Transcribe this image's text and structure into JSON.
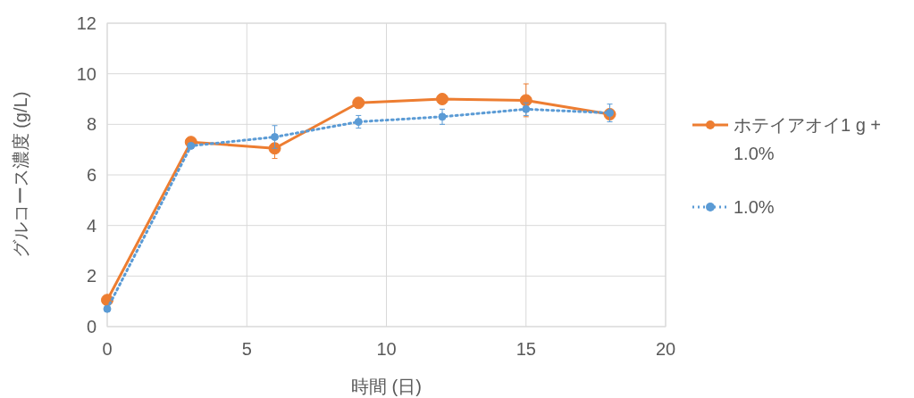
{
  "chart_data": {
    "type": "line",
    "xlabel": "時間 (日)",
    "ylabel": "グルコース濃度 (g/L)",
    "x": [
      0,
      3,
      6,
      9,
      12,
      15,
      18
    ],
    "xlim": [
      0,
      20
    ],
    "xticks": [
      0,
      5,
      10,
      15,
      20
    ],
    "ylim": [
      0,
      12
    ],
    "yticks": [
      0,
      2,
      4,
      6,
      8,
      10,
      12
    ],
    "grid": true,
    "legend": "right",
    "marker": "circle",
    "series": [
      {
        "name": "ホテイアオイ1 g + 1.0%",
        "color": "#ed7d31",
        "line_style": "solid",
        "values": [
          1.05,
          7.3,
          7.05,
          8.85,
          9.0,
          8.95,
          8.4
        ],
        "errors": [
          0.05,
          0.1,
          0.4,
          0.2,
          0.05,
          0.65,
          0.2
        ]
      },
      {
        "name": "1.0%",
        "color": "#5b9bd5",
        "line_style": "dotted",
        "values": [
          0.7,
          7.15,
          7.5,
          8.1,
          8.3,
          8.6,
          8.45
        ],
        "errors": [
          0.05,
          0.1,
          0.45,
          0.25,
          0.3,
          0.25,
          0.35
        ]
      }
    ]
  }
}
